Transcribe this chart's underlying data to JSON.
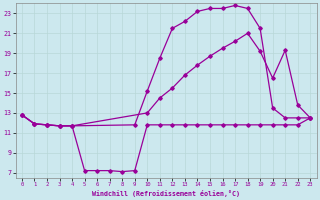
{
  "xlabel": "Windchill (Refroidissement éolien,°C)",
  "bg_color": "#cce8ee",
  "line_color": "#990099",
  "grid_color": "#b8d8d8",
  "xlim": [
    -0.5,
    23.5
  ],
  "ylim": [
    6.5,
    24.0
  ],
  "yticks": [
    7,
    9,
    11,
    13,
    15,
    17,
    19,
    21,
    23
  ],
  "xticks": [
    0,
    1,
    2,
    3,
    4,
    5,
    6,
    7,
    8,
    9,
    10,
    11,
    12,
    13,
    14,
    15,
    16,
    17,
    18,
    19,
    20,
    21,
    22,
    23
  ],
  "line1_x": [
    0,
    1,
    2,
    3,
    4,
    5,
    6,
    7,
    8,
    9,
    10,
    11,
    12,
    13,
    14,
    15,
    16,
    17,
    18,
    19,
    20,
    21,
    22,
    23
  ],
  "line1_y": [
    12.8,
    11.9,
    11.8,
    11.7,
    11.7,
    7.2,
    7.2,
    7.2,
    7.1,
    7.2,
    11.8,
    11.8,
    11.8,
    11.8,
    11.8,
    11.8,
    11.8,
    11.8,
    11.8,
    11.8,
    11.8,
    11.8,
    11.8,
    12.5
  ],
  "line2_x": [
    0,
    1,
    2,
    3,
    4,
    9,
    10,
    11,
    12,
    13,
    14,
    15,
    16,
    17,
    18,
    19,
    20,
    21,
    22,
    23
  ],
  "line2_y": [
    12.8,
    11.9,
    11.8,
    11.7,
    11.7,
    11.8,
    15.2,
    18.5,
    21.5,
    22.2,
    23.2,
    23.5,
    23.5,
    23.8,
    23.5,
    21.5,
    13.5,
    12.5,
    12.5,
    12.5
  ],
  "line3_x": [
    0,
    1,
    2,
    3,
    4,
    10,
    11,
    12,
    13,
    14,
    15,
    16,
    17,
    18,
    19,
    20,
    21,
    22,
    23
  ],
  "line3_y": [
    12.8,
    11.9,
    11.8,
    11.7,
    11.7,
    13.0,
    14.5,
    15.5,
    16.8,
    17.8,
    18.7,
    19.5,
    20.2,
    21.0,
    19.2,
    16.5,
    19.3,
    13.8,
    12.5
  ]
}
